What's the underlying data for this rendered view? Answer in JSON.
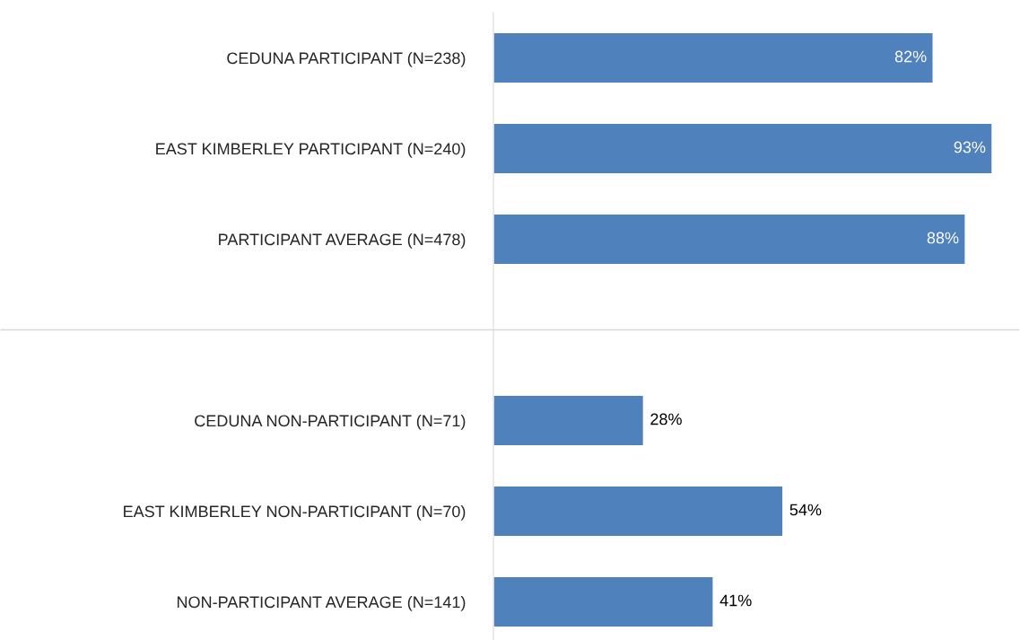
{
  "chart_data": {
    "type": "bar",
    "orientation": "horizontal",
    "categories": [
      "CEDUNA PARTICIPANT (N=238)",
      "EAST KIMBERLEY PARTICIPANT (N=240)",
      "PARTICIPANT AVERAGE (N=478)",
      null,
      "CEDUNA NON-PARTICIPANT (N=71)",
      "EAST KIMBERLEY NON-PARTICIPANT (N=70)",
      "NON-PARTICIPANT AVERAGE (N=141)"
    ],
    "values": [
      82,
      93,
      88,
      null,
      28,
      54,
      41
    ],
    "value_labels": [
      "82%",
      "93%",
      "88%",
      null,
      "28%",
      "54%",
      "41%"
    ],
    "color": "#4f81bd",
    "xlim": [
      0,
      98
    ],
    "tick_labels": "y",
    "grid": false,
    "legend": false
  }
}
